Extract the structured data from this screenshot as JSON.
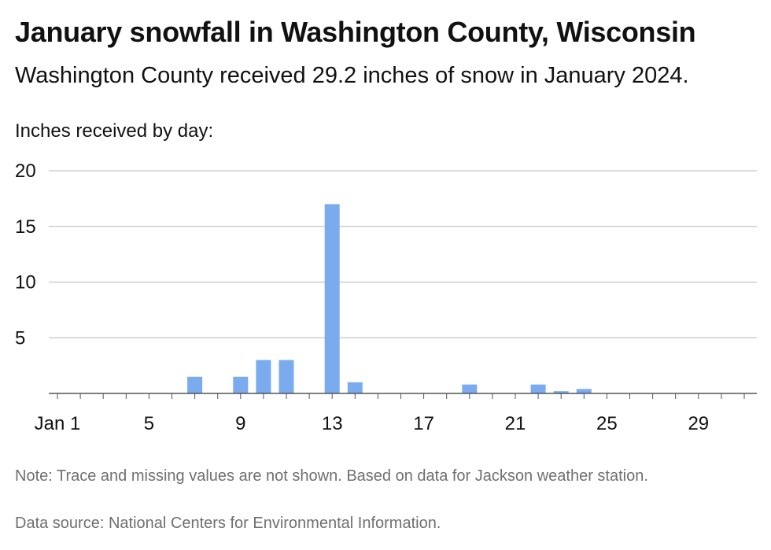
{
  "header": {
    "title": "January snowfall in Washington County, Wisconsin",
    "subtitle": "Washington County received 29.2 inches of snow in January 2024."
  },
  "chart_data": {
    "type": "bar",
    "ylabel": "Inches received by day:",
    "xlabel": "",
    "x_range": [
      1,
      31
    ],
    "x_ticks": [
      {
        "value": 1,
        "label": "Jan 1"
      },
      {
        "value": 5,
        "label": "5"
      },
      {
        "value": 9,
        "label": "9"
      },
      {
        "value": 13,
        "label": "13"
      },
      {
        "value": 17,
        "label": "17"
      },
      {
        "value": 21,
        "label": "21"
      },
      {
        "value": 25,
        "label": "25"
      },
      {
        "value": 29,
        "label": "29"
      }
    ],
    "ylim": [
      0,
      20
    ],
    "y_ticks": [
      {
        "value": 5,
        "label": "5"
      },
      {
        "value": 10,
        "label": "10"
      },
      {
        "value": 15,
        "label": "15"
      },
      {
        "value": 20,
        "label": "20"
      }
    ],
    "grid": true,
    "bar_color": "#7aabee",
    "points": [
      {
        "day": 7,
        "value": 1.5
      },
      {
        "day": 9,
        "value": 1.5
      },
      {
        "day": 10,
        "value": 3.0
      },
      {
        "day": 11,
        "value": 3.0
      },
      {
        "day": 13,
        "value": 17.0
      },
      {
        "day": 14,
        "value": 1.0
      },
      {
        "day": 19,
        "value": 0.8
      },
      {
        "day": 22,
        "value": 0.8
      },
      {
        "day": 23,
        "value": 0.2
      },
      {
        "day": 24,
        "value": 0.4
      }
    ]
  },
  "footer": {
    "note": "Note: Trace and missing values are not shown. Based on data for Jackson weather station.",
    "source": "Data source: National Centers for Environmental Information."
  }
}
